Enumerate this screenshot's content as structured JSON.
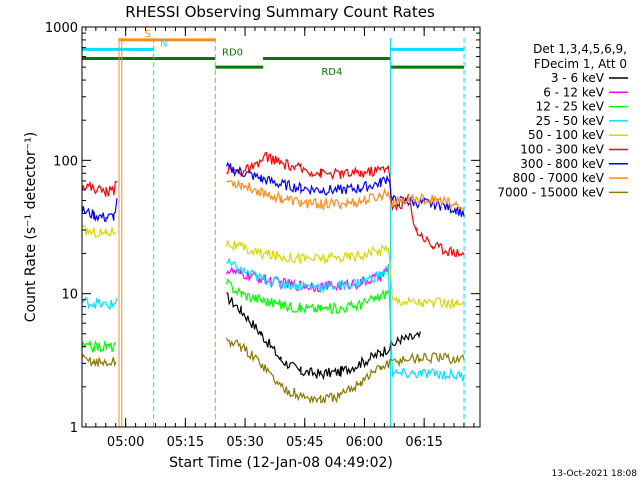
{
  "chart_data": {
    "type": "line",
    "title": "RHESSI Observing Summary Count Rates",
    "xlabel": "Start Time (12-Jan-08 04:49:02)",
    "ylabel": "Count Rate (s⁻¹ detector⁻¹)",
    "yscale": "log",
    "ylim": [
      1,
      1000
    ],
    "xlim_minutes": [
      0,
      100
    ],
    "x_ticks": [
      {
        "label": "05:00",
        "minutes": 10.97
      },
      {
        "label": "05:15",
        "minutes": 25.97
      },
      {
        "label": "05:30",
        "minutes": 40.97
      },
      {
        "label": "05:45",
        "minutes": 55.97
      },
      {
        "label": "06:00",
        "minutes": 70.97
      },
      {
        "label": "06:15",
        "minutes": 85.97
      }
    ],
    "y_ticks": [
      {
        "label": "1",
        "value": 1
      },
      {
        "label": "10",
        "value": 10
      },
      {
        "label": "100",
        "value": 100
      },
      {
        "label": "1000",
        "value": 1000
      }
    ],
    "legend_header": [
      "Det 1,3,4,5,6,9,",
      "FDecim 1, Att 0"
    ],
    "legend_position": "right",
    "footer_date": "13-Oct-2021 18:08",
    "flag_bars": [
      {
        "label": "S",
        "color": "#ff8c1a",
        "level": 800,
        "segments": [
          [
            9.2,
            33.5
          ]
        ]
      },
      {
        "label": "N",
        "color": "#00e0ff",
        "level": 680,
        "segments": [
          [
            0,
            18
          ],
          [
            77.5,
            96
          ]
        ]
      },
      {
        "label": "RD0",
        "color": "#007a00",
        "level": 580,
        "segments": [
          [
            0,
            33.5
          ],
          [
            45.5,
            77.5
          ]
        ]
      },
      {
        "label": "RD4",
        "color": "#007a00",
        "level": 500,
        "segments": [
          [
            33.5,
            45.5
          ],
          [
            77.5,
            96
          ]
        ]
      }
    ],
    "vertical_markers": [
      {
        "minutes": 9.3,
        "color": "#ff8c1a",
        "style": "solid"
      },
      {
        "minutes": 10.0,
        "color": "#ff8c1a",
        "style": "solid"
      },
      {
        "minutes": 18.0,
        "color": "#00e0ff",
        "style": "dashed"
      },
      {
        "minutes": 33.5,
        "color": "#ff8c1a",
        "style": "dashed"
      },
      {
        "minutes": 77.5,
        "color": "#00e0ff",
        "style": "solid"
      },
      {
        "minutes": 96.0,
        "color": "#00e0ff",
        "style": "dashed"
      }
    ],
    "gaps": [
      [
        9.5,
        36.3
      ]
    ],
    "series": [
      {
        "name": "3 - 6 keV",
        "color": "#000000",
        "points": [
          [
            36.3,
            9.5
          ],
          [
            40,
            7.5
          ],
          [
            45,
            5
          ],
          [
            50,
            3.2
          ],
          [
            55,
            2.6
          ],
          [
            60,
            2.5
          ],
          [
            65,
            2.6
          ],
          [
            70,
            3.0
          ],
          [
            75,
            3.6
          ],
          [
            80,
            4.5
          ],
          [
            85,
            4.8
          ]
        ]
      },
      {
        "name": "6 - 12 keV",
        "color": "#ff00ff",
        "points": [
          [
            36.3,
            15
          ],
          [
            40,
            14
          ],
          [
            45,
            13
          ],
          [
            50,
            12
          ],
          [
            55,
            11.5
          ],
          [
            60,
            11.3
          ],
          [
            65,
            11.5
          ],
          [
            70,
            12
          ],
          [
            75,
            13.5
          ],
          [
            77,
            15
          ]
        ]
      },
      {
        "name": "12 - 25 keV",
        "color": "#00ff00",
        "points": [
          [
            0,
            4
          ],
          [
            3,
            4
          ],
          [
            6,
            4
          ],
          [
            8.5,
            4
          ],
          [
            36.3,
            12
          ],
          [
            40,
            10
          ],
          [
            45,
            9
          ],
          [
            50,
            8.2
          ],
          [
            55,
            7.8
          ],
          [
            60,
            7.7
          ],
          [
            65,
            7.8
          ],
          [
            70,
            8.3
          ],
          [
            75,
            9.5
          ],
          [
            77,
            10.5
          ]
        ]
      },
      {
        "name": "25 - 50 keV",
        "color": "#00e0ff",
        "points": [
          [
            0,
            8.8
          ],
          [
            2,
            8.6
          ],
          [
            4,
            8.4
          ],
          [
            6,
            8.2
          ],
          [
            8,
            8.3
          ],
          [
            8.8,
            9.5
          ],
          [
            36.3,
            17
          ],
          [
            40,
            15
          ],
          [
            45,
            13
          ],
          [
            50,
            12
          ],
          [
            55,
            11.5
          ],
          [
            60,
            11.3
          ],
          [
            65,
            11.5
          ],
          [
            70,
            12.2
          ],
          [
            75,
            13.8
          ],
          [
            77,
            15.5
          ],
          [
            78,
            2.5
          ],
          [
            85,
            2.5
          ],
          [
            90,
            2.5
          ],
          [
            96,
            2.4
          ]
        ]
      },
      {
        "name": "50 - 100 keV",
        "color": "#d8d800",
        "points": [
          [
            0,
            30
          ],
          [
            3,
            29
          ],
          [
            6,
            28.5
          ],
          [
            8.5,
            30
          ],
          [
            36.3,
            24
          ],
          [
            40,
            22
          ],
          [
            45,
            20
          ],
          [
            50,
            19
          ],
          [
            55,
            18.5
          ],
          [
            60,
            18.3
          ],
          [
            65,
            18.6
          ],
          [
            70,
            19.5
          ],
          [
            75,
            21
          ],
          [
            77,
            22.5
          ],
          [
            78,
            9
          ],
          [
            82,
            8.8
          ],
          [
            86,
            8.6
          ],
          [
            90,
            8.5
          ],
          [
            94,
            8.3
          ],
          [
            96,
            8.2
          ]
        ]
      },
      {
        "name": "100 - 300 keV",
        "color": "#ff0000",
        "points": [
          [
            0,
            65
          ],
          [
            3,
            62
          ],
          [
            6,
            58
          ],
          [
            8,
            60
          ],
          [
            8.8,
            75
          ],
          [
            36.3,
            85
          ],
          [
            40,
            82
          ],
          [
            44,
            90
          ],
          [
            46,
            108
          ],
          [
            50,
            95
          ],
          [
            55,
            86
          ],
          [
            60,
            80
          ],
          [
            65,
            79
          ],
          [
            70,
            80
          ],
          [
            75,
            85
          ],
          [
            77,
            92
          ],
          [
            78,
            42
          ],
          [
            82,
            52
          ],
          [
            84,
            30
          ],
          [
            88,
            23
          ],
          [
            92,
            21
          ],
          [
            96,
            20
          ]
        ]
      },
      {
        "name": "300 - 800 keV",
        "color": "#0000ff",
        "points": [
          [
            0,
            42
          ],
          [
            3,
            39
          ],
          [
            6,
            37
          ],
          [
            8,
            38
          ],
          [
            8.8,
            48
          ],
          [
            36.3,
            88
          ],
          [
            40,
            82
          ],
          [
            45,
            73
          ],
          [
            50,
            66
          ],
          [
            55,
            62
          ],
          [
            60,
            60
          ],
          [
            65,
            60
          ],
          [
            70,
            62
          ],
          [
            75,
            68
          ],
          [
            77,
            75
          ],
          [
            78,
            50
          ],
          [
            82,
            49
          ],
          [
            86,
            48
          ],
          [
            90,
            46
          ],
          [
            94,
            43
          ],
          [
            96,
            40
          ]
        ]
      },
      {
        "name": "800 - 7000 keV",
        "color": "#ff8c1a",
        "points": [
          [
            36.3,
            70
          ],
          [
            40,
            66
          ],
          [
            45,
            58
          ],
          [
            50,
            52
          ],
          [
            55,
            48
          ],
          [
            60,
            47
          ],
          [
            65,
            47
          ],
          [
            70,
            49
          ],
          [
            75,
            54
          ],
          [
            77,
            58
          ],
          [
            78,
            48
          ],
          [
            82,
            51
          ],
          [
            86,
            51
          ],
          [
            90,
            50
          ],
          [
            94,
            46
          ],
          [
            96,
            42
          ]
        ]
      },
      {
        "name": "7000 - 15000 keV",
        "color": "#8b7a00",
        "points": [
          [
            0,
            3.2
          ],
          [
            3,
            3.1
          ],
          [
            6,
            3.0
          ],
          [
            8.5,
            3.1
          ],
          [
            36.3,
            4.5
          ],
          [
            40,
            4
          ],
          [
            45,
            3
          ],
          [
            50,
            2
          ],
          [
            55,
            1.7
          ],
          [
            60,
            1.6
          ],
          [
            65,
            1.7
          ],
          [
            70,
            2.2
          ],
          [
            75,
            2.8
          ],
          [
            80,
            3.2
          ],
          [
            85,
            3.3
          ],
          [
            90,
            3.3
          ],
          [
            96,
            3.2
          ]
        ]
      }
    ]
  }
}
